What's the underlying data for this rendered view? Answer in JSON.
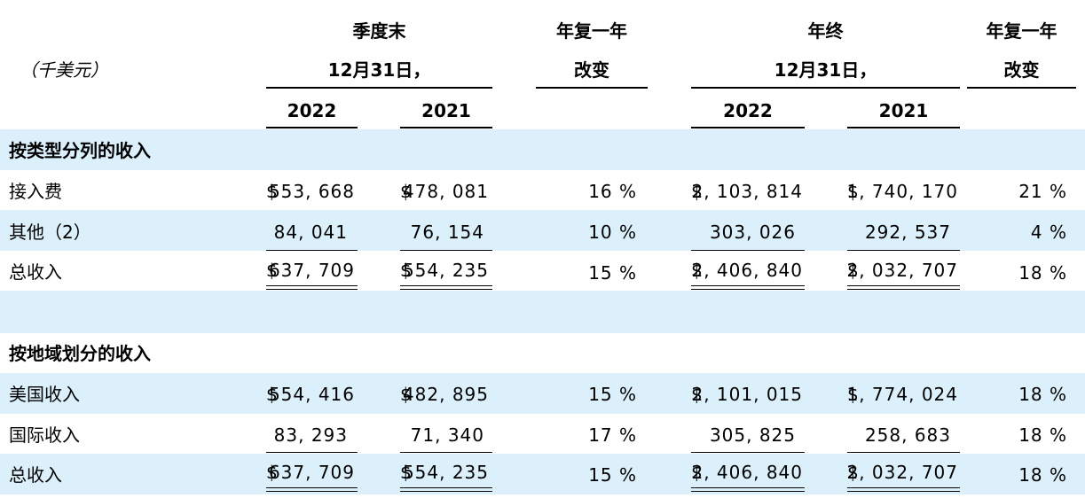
{
  "header": {
    "unit": "（千美元）",
    "quarter_group": "季度末",
    "quarter_date": "12月31日，",
    "yoy1_line1": "年复一年",
    "yoy1_line2": "改变",
    "year_group": "年终",
    "year_date": "12月31日，",
    "yoy2_line1": "年复一年",
    "yoy2_line2": "改变",
    "q_2022": "2022",
    "q_2021": "2021",
    "y_2022": "2022",
    "y_2021": "2021"
  },
  "sections": {
    "by_type": "按类型分列的收入",
    "by_region": "按地域划分的收入"
  },
  "rows": {
    "access_fee": {
      "label": "接入费",
      "q2022": "553, 668",
      "q2021": "478, 081",
      "qchg": "16 %",
      "y2022": "2, 103, 814",
      "y2021": "1, 740, 170",
      "ychg": "21 %"
    },
    "other": {
      "label": "其他（2）",
      "q2022": "84, 041",
      "q2021": "76, 154",
      "qchg": "10 %",
      "y2022": "303, 026",
      "y2021": "292, 537",
      "ychg": "4 %"
    },
    "total1": {
      "label": "总收入",
      "q2022": "637, 709",
      "q2021": "554, 235",
      "qchg": "15 %",
      "y2022": "2, 406, 840",
      "y2021": "2, 032, 707",
      "ychg": "18 %"
    },
    "us": {
      "label": "美国收入",
      "q2022": "554, 416",
      "q2021": "482, 895",
      "qchg": "15 %",
      "y2022": "2, 101, 015",
      "y2021": "1, 774, 024",
      "ychg": "18 %"
    },
    "intl": {
      "label": "国际收入",
      "q2022": "83, 293",
      "q2021": "71, 340",
      "qchg": "17 %",
      "y2022": "305, 825",
      "y2021": "258, 683",
      "ychg": "18 %"
    },
    "total2": {
      "label": "总收入",
      "q2022": "637, 709",
      "q2021": "554, 235",
      "qchg": "15 %",
      "y2022": "2, 406, 840",
      "y2021": "2, 032, 707",
      "ychg": "18 %"
    }
  },
  "currency_symbol": "$",
  "colors": {
    "band": "#dcf0fb",
    "text": "#000000"
  }
}
